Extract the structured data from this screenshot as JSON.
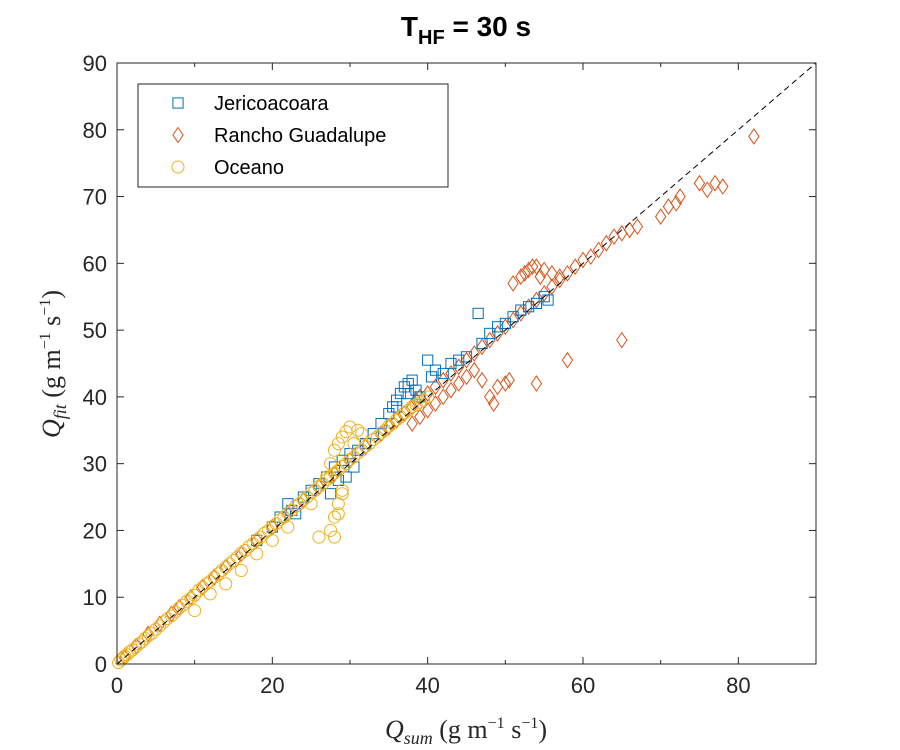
{
  "chart_data": {
    "type": "scatter",
    "title": {
      "main": "T",
      "sub": "HF",
      "rest": " = 30 s"
    },
    "xlabel": {
      "main": "Q",
      "sub": "sum",
      "unit_open": " (g m",
      "exp1": "−1",
      "mid": " s",
      "exp2": "−1",
      "close": ")"
    },
    "ylabel": {
      "main": "Q",
      "sub": "fit",
      "unit_open": " (g m",
      "exp1": "−1",
      "mid": " s",
      "exp2": "−1",
      "close": ")"
    },
    "xlim": [
      0,
      90
    ],
    "ylim": [
      0,
      90
    ],
    "xticks": [
      0,
      20,
      40,
      60,
      80
    ],
    "yticks": [
      0,
      10,
      20,
      30,
      40,
      50,
      60,
      70,
      80,
      90
    ],
    "xtick_labels": [
      "0",
      "20",
      "40",
      "60",
      "80"
    ],
    "ytick_labels": [
      "0",
      "10",
      "20",
      "30",
      "40",
      "50",
      "60",
      "70",
      "80",
      "90"
    ],
    "grid": false,
    "legend_position": "top-left",
    "reference_line": {
      "style": "dashed",
      "color": "#000000",
      "from": [
        0,
        0
      ],
      "to": [
        90,
        90
      ]
    },
    "series": [
      {
        "name": "Jericoacoara",
        "marker": "square",
        "color": "#0072BD",
        "points": [
          [
            26,
            27
          ],
          [
            27,
            28
          ],
          [
            28,
            29.5
          ],
          [
            29,
            30.5
          ],
          [
            30,
            31.5
          ],
          [
            31,
            32
          ],
          [
            32,
            33
          ],
          [
            33,
            34.5
          ],
          [
            34,
            36
          ],
          [
            35,
            37.5
          ],
          [
            35.5,
            38.5
          ],
          [
            36,
            39.5
          ],
          [
            36.5,
            40.5
          ],
          [
            37,
            41.5
          ],
          [
            37.5,
            42
          ],
          [
            38,
            42.5
          ],
          [
            38.5,
            41
          ],
          [
            39,
            40
          ],
          [
            37.5,
            40.5
          ],
          [
            36,
            38.5
          ],
          [
            40,
            45.5
          ],
          [
            40.5,
            43
          ],
          [
            41,
            44
          ],
          [
            42,
            43.5
          ],
          [
            43,
            45
          ],
          [
            44,
            45.5
          ],
          [
            45,
            46
          ],
          [
            46.5,
            52.5
          ],
          [
            47,
            48
          ],
          [
            48,
            49.5
          ],
          [
            49,
            50.5
          ],
          [
            50,
            51
          ],
          [
            51,
            52
          ],
          [
            52,
            53
          ],
          [
            53,
            53.5
          ],
          [
            54,
            54
          ],
          [
            55,
            55
          ],
          [
            55.5,
            54.5
          ],
          [
            22,
            24
          ],
          [
            23,
            22.5
          ],
          [
            24,
            25
          ],
          [
            25,
            26
          ],
          [
            27.5,
            25.5
          ],
          [
            28.5,
            27.5
          ],
          [
            29.5,
            28
          ],
          [
            30.5,
            29.5
          ],
          [
            22.5,
            23
          ],
          [
            21,
            22
          ],
          [
            20,
            20.5
          ],
          [
            18,
            18.5
          ]
        ]
      },
      {
        "name": "Rancho Guadalupe",
        "marker": "diamond",
        "color": "#D95319",
        "points": [
          [
            1,
            1
          ],
          [
            2.5,
            2.7
          ],
          [
            4,
            4.5
          ],
          [
            5.5,
            6
          ],
          [
            7,
            7.5
          ],
          [
            8,
            8.5
          ],
          [
            9.5,
            10
          ],
          [
            11,
            11.5
          ],
          [
            12.5,
            13
          ],
          [
            14,
            14.5
          ],
          [
            16,
            16.5
          ],
          [
            18,
            18.5
          ],
          [
            20,
            20.5
          ],
          [
            22,
            22.5
          ],
          [
            24,
            24.5
          ],
          [
            26,
            26.5
          ],
          [
            28,
            28.5
          ],
          [
            30,
            30.5
          ],
          [
            32,
            32.5
          ],
          [
            34,
            34.5
          ],
          [
            35,
            35.5
          ],
          [
            36,
            36.5
          ],
          [
            37,
            37.5
          ],
          [
            38,
            38.5
          ],
          [
            38.5,
            39.5
          ],
          [
            39,
            40
          ],
          [
            40,
            40.5
          ],
          [
            41,
            41.5
          ],
          [
            42,
            42.5
          ],
          [
            43,
            43.5
          ],
          [
            44,
            44.5
          ],
          [
            45,
            45.5
          ],
          [
            46,
            46.5
          ],
          [
            47,
            47.5
          ],
          [
            48,
            48.5
          ],
          [
            49,
            49.5
          ],
          [
            50,
            50.5
          ],
          [
            51,
            51.5
          ],
          [
            52,
            52.5
          ],
          [
            53,
            53.5
          ],
          [
            54,
            54.5
          ],
          [
            55,
            55.5
          ],
          [
            56,
            56.5
          ],
          [
            57,
            57.5
          ],
          [
            58,
            58.5
          ],
          [
            59,
            59.5
          ],
          [
            60,
            60.5
          ],
          [
            61,
            61
          ],
          [
            62,
            62
          ],
          [
            63,
            63
          ],
          [
            64,
            64
          ],
          [
            65,
            64.5
          ],
          [
            66,
            65
          ],
          [
            67,
            65.5
          ],
          [
            70,
            67
          ],
          [
            71,
            68.5
          ],
          [
            72,
            69
          ],
          [
            72.5,
            70
          ],
          [
            75,
            72
          ],
          [
            76,
            71
          ],
          [
            77,
            72
          ],
          [
            78,
            71.5
          ],
          [
            82,
            79
          ],
          [
            51,
            57
          ],
          [
            52,
            58
          ],
          [
            53,
            59
          ],
          [
            54,
            59.5
          ],
          [
            55,
            59
          ],
          [
            56,
            58.5
          ],
          [
            57,
            58
          ],
          [
            52.5,
            58.5
          ],
          [
            53.5,
            59.5
          ],
          [
            54.5,
            58
          ],
          [
            38,
            36
          ],
          [
            39,
            37
          ],
          [
            40,
            38
          ],
          [
            41,
            39
          ],
          [
            42,
            40
          ],
          [
            43,
            41
          ],
          [
            44,
            42
          ],
          [
            45,
            43
          ],
          [
            46,
            44
          ],
          [
            47,
            42.5
          ],
          [
            48,
            40
          ],
          [
            48.5,
            39
          ],
          [
            49,
            41.5
          ],
          [
            50,
            42
          ],
          [
            50.5,
            42.5
          ],
          [
            54,
            42
          ],
          [
            58,
            45.5
          ],
          [
            65,
            48.5
          ]
        ]
      },
      {
        "name": "Oceano",
        "marker": "circle",
        "color": "#EDB120",
        "points": [
          [
            0.2,
            0.2
          ],
          [
            0.5,
            0.6
          ],
          [
            0.8,
            0.9
          ],
          [
            1,
            1.2
          ],
          [
            1.3,
            1.4
          ],
          [
            1.6,
            1.8
          ],
          [
            2,
            2.1
          ],
          [
            2.4,
            2.5
          ],
          [
            2.8,
            3
          ],
          [
            3.2,
            3.3
          ],
          [
            3.6,
            3.8
          ],
          [
            4,
            4.2
          ],
          [
            4.5,
            4.6
          ],
          [
            5,
            5.2
          ],
          [
            5.5,
            5.7
          ],
          [
            6,
            6.3
          ],
          [
            6.5,
            6.8
          ],
          [
            7,
            7.2
          ],
          [
            7.5,
            7.8
          ],
          [
            8,
            8.4
          ],
          [
            8.5,
            8.8
          ],
          [
            9,
            9.4
          ],
          [
            9.5,
            9.8
          ],
          [
            10,
            10.3
          ],
          [
            10.5,
            11
          ],
          [
            11,
            11.5
          ],
          [
            11.5,
            12
          ],
          [
            12,
            12.4
          ],
          [
            12.5,
            13
          ],
          [
            13,
            13.5
          ],
          [
            13.5,
            14
          ],
          [
            14,
            14.5
          ],
          [
            14.5,
            15
          ],
          [
            15,
            15.5
          ],
          [
            15.5,
            16
          ],
          [
            16,
            16.6
          ],
          [
            16.5,
            17
          ],
          [
            17,
            17.6
          ],
          [
            17.5,
            18
          ],
          [
            18,
            18.6
          ],
          [
            18.5,
            19
          ],
          [
            19,
            19.6
          ],
          [
            19.5,
            20
          ],
          [
            20,
            20.6
          ],
          [
            20.5,
            21
          ],
          [
            21,
            21.6
          ],
          [
            21.5,
            22
          ],
          [
            22,
            22.6
          ],
          [
            22.5,
            23
          ],
          [
            23,
            23.6
          ],
          [
            23.5,
            24
          ],
          [
            24,
            24.6
          ],
          [
            24.5,
            25
          ],
          [
            25,
            25.6
          ],
          [
            25.5,
            26
          ],
          [
            26,
            26.6
          ],
          [
            26.5,
            27
          ],
          [
            27,
            27.6
          ],
          [
            27.5,
            28
          ],
          [
            28,
            28.6
          ],
          [
            28.5,
            29
          ],
          [
            29,
            29.6
          ],
          [
            29.5,
            30
          ],
          [
            30,
            30.6
          ],
          [
            30.5,
            31
          ],
          [
            31,
            31.6
          ],
          [
            31.5,
            32
          ],
          [
            32,
            32.6
          ],
          [
            32.5,
            33
          ],
          [
            33,
            33.6
          ],
          [
            33.5,
            34
          ],
          [
            34,
            34.6
          ],
          [
            34.5,
            35
          ],
          [
            35,
            35.6
          ],
          [
            35.5,
            36
          ],
          [
            36,
            36.6
          ],
          [
            36.5,
            37
          ],
          [
            37,
            37.6
          ],
          [
            37.5,
            38
          ],
          [
            38,
            38.5
          ],
          [
            38.5,
            38.8
          ],
          [
            39,
            39.2
          ],
          [
            39.5,
            39.5
          ],
          [
            40,
            40
          ],
          [
            27,
            28
          ],
          [
            27.5,
            30
          ],
          [
            28,
            32
          ],
          [
            28.5,
            33
          ],
          [
            29,
            34
          ],
          [
            29.5,
            34.8
          ],
          [
            30,
            35.5
          ],
          [
            29,
            26
          ],
          [
            28.5,
            24
          ],
          [
            28,
            22
          ],
          [
            27.5,
            20
          ],
          [
            28,
            19
          ],
          [
            28.5,
            22.5
          ],
          [
            29,
            25.5
          ],
          [
            26,
            19
          ],
          [
            25,
            24
          ],
          [
            31,
            35
          ],
          [
            31.5,
            34.5
          ],
          [
            30.5,
            33
          ],
          [
            10,
            8
          ],
          [
            12,
            10.5
          ],
          [
            14,
            12
          ],
          [
            16,
            14
          ],
          [
            18,
            16.5
          ],
          [
            20,
            18.5
          ],
          [
            22,
            20.5
          ]
        ]
      }
    ]
  }
}
